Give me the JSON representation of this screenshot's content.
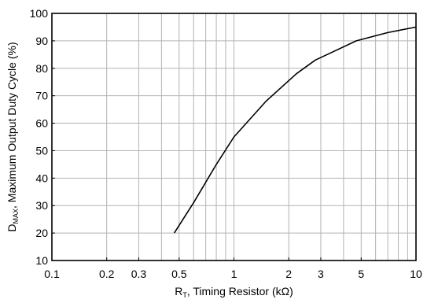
{
  "chart_data": {
    "type": "line",
    "title": "",
    "xlabel": {
      "prefix": "R",
      "subscript": "T",
      "suffix": ", Timing Resistor (kΩ)"
    },
    "ylabel": {
      "prefix": "D",
      "subscript": "MAX",
      "suffix": ", Maximum Output Duty Cycle (%)"
    },
    "xscale": "log",
    "xlim": [
      0.1,
      10
    ],
    "ylim": [
      10,
      100
    ],
    "grid": true,
    "x_ticks": [
      {
        "value": 0.1,
        "label": "0.1"
      },
      {
        "value": 0.2,
        "label": "0.2"
      },
      {
        "value": 0.3,
        "label": "0.3"
      },
      {
        "value": 0.5,
        "label": "0.5"
      },
      {
        "value": 1,
        "label": "1"
      },
      {
        "value": 2,
        "label": "2"
      },
      {
        "value": 3,
        "label": "3"
      },
      {
        "value": 5,
        "label": "5"
      },
      {
        "value": 10,
        "label": "10"
      }
    ],
    "y_ticks": [
      {
        "value": 10,
        "label": "10"
      },
      {
        "value": 20,
        "label": "20"
      },
      {
        "value": 30,
        "label": "30"
      },
      {
        "value": 40,
        "label": "40"
      },
      {
        "value": 50,
        "label": "50"
      },
      {
        "value": 60,
        "label": "60"
      },
      {
        "value": 70,
        "label": "70"
      },
      {
        "value": 80,
        "label": "80"
      },
      {
        "value": 90,
        "label": "90"
      },
      {
        "value": 100,
        "label": "100"
      }
    ],
    "series": [
      {
        "x": [
          0.47,
          0.6,
          0.8,
          1.0,
          1.5,
          2.2,
          2.8,
          3.5,
          4.7,
          7.0,
          10.0
        ],
        "y": [
          20,
          31,
          45,
          55,
          68,
          78,
          83,
          86,
          90,
          93,
          95
        ]
      }
    ],
    "line_color": "#000000",
    "grid_color": "#b3b3b3"
  }
}
